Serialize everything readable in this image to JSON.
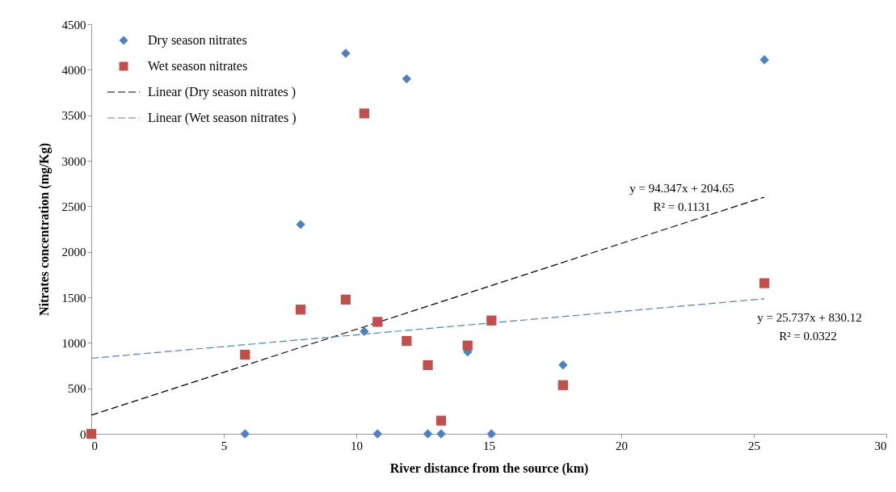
{
  "chart_data": {
    "type": "scatter",
    "xlabel": "River distance from the source (km)",
    "ylabel": "Nitrates concentration (mg/Kg)",
    "xlim": [
      0,
      30
    ],
    "xticks": [
      0,
      5,
      10,
      15,
      20,
      25,
      30
    ],
    "ylim": [
      0,
      4500
    ],
    "yticks": [
      0,
      500,
      1000,
      1500,
      2000,
      2500,
      3000,
      3500,
      4000,
      4500
    ],
    "legend": "top left",
    "series": [
      {
        "name": "Dry season nitrates",
        "marker": "diamond",
        "color": "#4f81bd",
        "x": [
          5.8,
          7.9,
          9.6,
          10.3,
          10.8,
          11.9,
          12.7,
          13.2,
          14.2,
          15.1,
          17.8,
          25.4
        ],
        "values": [
          0,
          2300,
          4180,
          1125,
          0,
          3900,
          0,
          0,
          900,
          0,
          757,
          4110
        ]
      },
      {
        "name": "Wet season nitrates",
        "marker": "square",
        "color": "#c0504d",
        "x": [
          0,
          5.8,
          7.9,
          9.6,
          10.3,
          10.8,
          11.9,
          12.7,
          13.2,
          14.2,
          15.1,
          17.8,
          25.4
        ],
        "values": [
          0,
          870,
          1365,
          1475,
          3520,
          1230,
          1020,
          755,
          145,
          970,
          1245,
          535,
          1655
        ]
      },
      {
        "name": "Linear (Dry season nitrates )",
        "type": "line",
        "line_style": "dashed",
        "color": "#000000",
        "x": [
          0,
          25.4
        ],
        "values": [
          204.65,
          2601.06
        ]
      },
      {
        "name": "Linear (Wet season nitrates )",
        "type": "line",
        "line_style": "dashed",
        "color": "#4f81bd",
        "x": [
          0,
          25.4
        ],
        "values": [
          830.12,
          1483.84
        ]
      }
    ],
    "annotations": [
      "y = 94.347x + 204.65",
      "R² = 0.1131",
      "y = 25.737x + 830.12",
      "R² = 0.0322"
    ]
  }
}
